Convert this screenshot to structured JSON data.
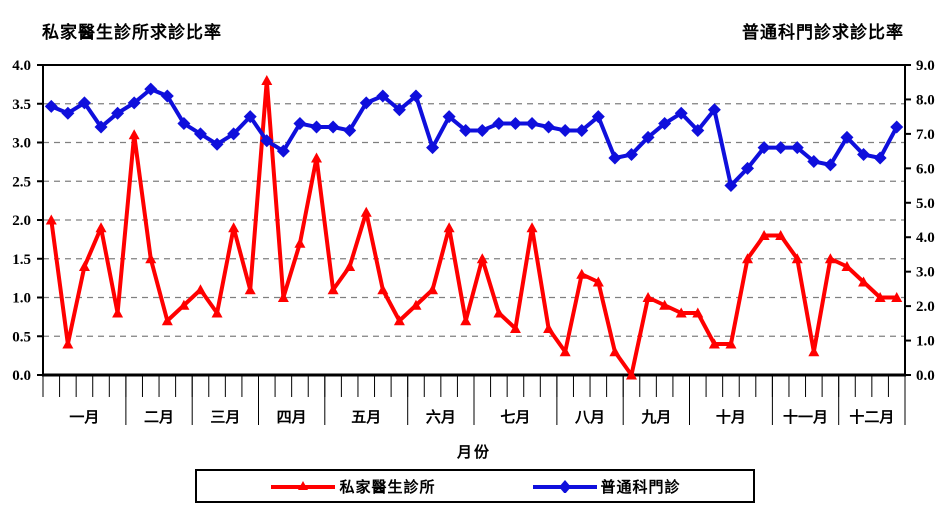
{
  "chart_data": {
    "type": "line",
    "title_left": "私家醫生診所求診比率",
    "title_right": "普通科門診求診比率",
    "xlabel": "月份",
    "months": [
      "一月",
      "二月",
      "三月",
      "四月",
      "五月",
      "六月",
      "七月",
      "八月",
      "九月",
      "十月",
      "十一月",
      "十二月"
    ],
    "weeks_per_month": [
      5,
      4,
      4,
      4,
      5,
      4,
      5,
      4,
      4,
      5,
      4,
      4
    ],
    "left_axis": {
      "min": 0.0,
      "max": 4.0,
      "step": 0.5
    },
    "right_axis": {
      "min": 0.0,
      "max": 9.0,
      "step": 1.0
    },
    "grid": "horizontal-dashed",
    "legend_position": "bottom",
    "colors": {
      "grid": "#808080",
      "axis": "#000000",
      "red_series": "#FF0000",
      "blue_series": "#0F0FDC"
    },
    "series": [
      {
        "name": "私家醫生診所",
        "axis": "left",
        "marker": "triangle",
        "color": "#FF0000",
        "values": [
          2.0,
          0.4,
          1.4,
          1.9,
          0.8,
          3.1,
          1.5,
          0.7,
          0.9,
          1.1,
          0.8,
          1.9,
          1.1,
          3.8,
          1.0,
          1.7,
          2.8,
          1.1,
          1.4,
          2.1,
          1.1,
          0.7,
          0.9,
          1.1,
          1.9,
          0.7,
          1.5,
          0.8,
          0.6,
          1.9,
          0.6,
          0.3,
          1.3,
          1.2,
          0.3,
          0.0,
          1.0,
          0.9,
          0.8,
          0.8,
          0.4,
          0.4,
          1.5,
          1.8,
          1.8,
          1.5,
          0.3,
          1.5,
          1.4,
          1.2,
          1.0,
          1.0
        ]
      },
      {
        "name": "普通科門診",
        "axis": "right",
        "marker": "diamond",
        "color": "#0F0FDC",
        "values": [
          7.8,
          7.6,
          7.9,
          7.2,
          7.6,
          7.9,
          8.3,
          8.1,
          7.3,
          7.0,
          6.7,
          7.0,
          7.5,
          6.8,
          6.5,
          7.3,
          7.2,
          7.2,
          7.1,
          7.9,
          8.1,
          7.7,
          8.1,
          6.6,
          7.5,
          7.1,
          7.1,
          7.3,
          7.3,
          7.3,
          7.2,
          7.1,
          7.1,
          7.5,
          6.3,
          6.4,
          6.9,
          7.3,
          7.6,
          7.1,
          7.7,
          5.5,
          6.0,
          6.6,
          6.6,
          6.6,
          6.2,
          6.1,
          6.9,
          6.4,
          6.3,
          7.2
        ]
      }
    ]
  }
}
